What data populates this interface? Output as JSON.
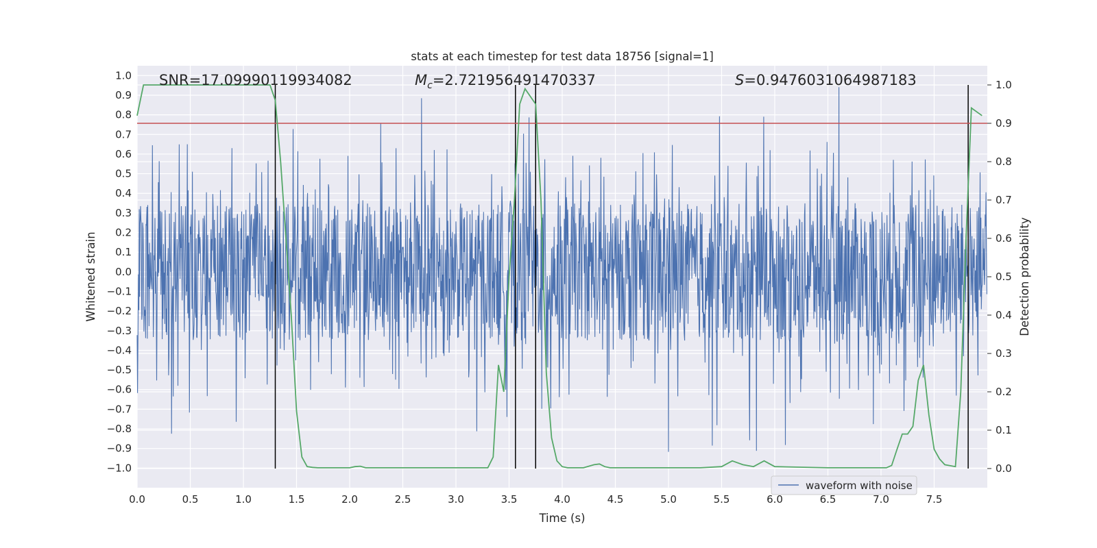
{
  "chart_data": {
    "type": "line",
    "title": "stats at each timestep for test data 18756 [signal=1]",
    "xlabel": "Time (s)",
    "ylabel_left": "Whitened strain",
    "ylabel_right": "Detection probability",
    "xlim": [
      0.0,
      8.0
    ],
    "ylim_left": [
      -1.1,
      1.05
    ],
    "ylim_right": [
      -0.05,
      1.05
    ],
    "x_ticks": [
      "0.0",
      "0.5",
      "1.0",
      "1.5",
      "2.0",
      "2.5",
      "3.0",
      "3.5",
      "4.0",
      "4.5",
      "5.0",
      "5.5",
      "6.0",
      "6.5",
      "7.0",
      "7.5"
    ],
    "y_ticks_left": [
      "1.0",
      "0.9",
      "0.8",
      "0.7",
      "0.6",
      "0.5",
      "0.4",
      "0.3",
      "0.2",
      "0.1",
      "0.0",
      "−0.1",
      "−0.2",
      "−0.3",
      "−0.4",
      "−0.5",
      "−0.6",
      "−0.7",
      "−0.8",
      "−0.9",
      "−1.0"
    ],
    "y_ticks_right": [
      "1.0",
      "0.9",
      "0.8",
      "0.7",
      "0.6",
      "0.5",
      "0.4",
      "0.3",
      "0.2",
      "0.1",
      "0.0"
    ],
    "annotations": {
      "snr": "SNR=17.09990119934082",
      "mc_symbol": "M",
      "mc_sub": "c",
      "mc_value": "=2.721956491470337",
      "s_symbol": "S",
      "s_value": "=0.9476031064987183"
    },
    "legend": {
      "label": "waveform with noise",
      "position": "bottom-right"
    },
    "threshold": {
      "value": 0.9,
      "axis": "right",
      "color": "#c44e52"
    },
    "vertical_markers": [
      1.3,
      3.56,
      3.75,
      7.82
    ],
    "series": [
      {
        "name": "waveform with noise",
        "axis": "left",
        "color": "#4c72b0",
        "kind": "strain",
        "approx_core_amplitude": 0.35,
        "approx_peak_amplitude": 0.95
      },
      {
        "name": "detection probability",
        "axis": "right",
        "color": "#55a868",
        "x": [
          0.0,
          0.06,
          0.12,
          0.2,
          0.5,
          1.0,
          1.25,
          1.3,
          1.35,
          1.45,
          1.5,
          1.55,
          1.6,
          1.65,
          1.7,
          1.8,
          2.0,
          2.05,
          2.1,
          2.15,
          2.2,
          2.5,
          3.0,
          3.3,
          3.35,
          3.4,
          3.45,
          3.5,
          3.55,
          3.6,
          3.65,
          3.7,
          3.75,
          3.8,
          3.85,
          3.9,
          3.95,
          4.0,
          4.05,
          4.2,
          4.3,
          4.35,
          4.4,
          4.45,
          4.5,
          4.8,
          5.3,
          5.5,
          5.6,
          5.7,
          5.8,
          5.9,
          6.0,
          6.5,
          6.9,
          7.05,
          7.1,
          7.15,
          7.2,
          7.25,
          7.3,
          7.35,
          7.4,
          7.45,
          7.5,
          7.55,
          7.6,
          7.7,
          7.75,
          7.8,
          7.85,
          7.9,
          7.95
        ],
        "y": [
          0.92,
          1.0,
          1.0,
          1.0,
          1.0,
          1.0,
          1.0,
          0.96,
          0.8,
          0.4,
          0.15,
          0.03,
          0.005,
          0.003,
          0.002,
          0.002,
          0.002,
          0.005,
          0.006,
          0.002,
          0.002,
          0.002,
          0.002,
          0.002,
          0.03,
          0.27,
          0.2,
          0.5,
          0.7,
          0.95,
          0.99,
          0.97,
          0.95,
          0.7,
          0.25,
          0.08,
          0.02,
          0.005,
          0.002,
          0.002,
          0.01,
          0.012,
          0.005,
          0.002,
          0.002,
          0.002,
          0.002,
          0.005,
          0.02,
          0.01,
          0.005,
          0.02,
          0.005,
          0.002,
          0.002,
          0.002,
          0.008,
          0.05,
          0.09,
          0.09,
          0.11,
          0.23,
          0.27,
          0.14,
          0.05,
          0.025,
          0.01,
          0.005,
          0.2,
          0.6,
          0.94,
          0.93,
          0.92
        ]
      }
    ]
  }
}
